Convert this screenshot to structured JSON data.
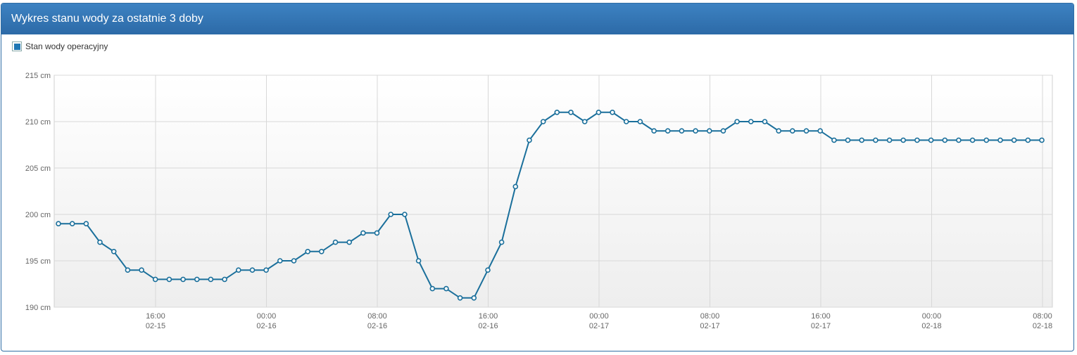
{
  "panel": {
    "title": "Wykres stanu wody za ostatnie 3 doby"
  },
  "legend": {
    "label": "Stan wody operacyjny",
    "color": "#1f77b4"
  },
  "chart_data": {
    "type": "line",
    "ylim": [
      190,
      215
    ],
    "y_ticks": [
      "215 cm",
      "210 cm",
      "205 cm",
      "200 cm",
      "195 cm",
      "190 cm"
    ],
    "x_ticks": [
      {
        "time": "16:00",
        "date": "02-15"
      },
      {
        "time": "00:00",
        "date": "02-16"
      },
      {
        "time": "08:00",
        "date": "02-16"
      },
      {
        "time": "16:00",
        "date": "02-16"
      },
      {
        "time": "00:00",
        "date": "02-17"
      },
      {
        "time": "08:00",
        "date": "02-17"
      },
      {
        "time": "16:00",
        "date": "02-17"
      },
      {
        "time": "00:00",
        "date": "02-18"
      },
      {
        "time": "08:00",
        "date": "02-18"
      }
    ],
    "grid": true,
    "series": [
      {
        "name": "Stan wody operacyjny",
        "color": "#1a6f9b",
        "values": [
          199,
          199,
          199,
          197,
          196,
          194,
          194,
          193,
          193,
          193,
          193,
          193,
          193,
          194,
          194,
          194,
          195,
          195,
          196,
          196,
          197,
          197,
          198,
          198,
          200,
          200,
          195,
          192,
          192,
          191,
          191,
          194,
          197,
          203,
          208,
          210,
          211,
          211,
          210,
          211,
          211,
          210,
          210,
          209,
          209,
          209,
          209,
          209,
          209,
          210,
          210,
          210,
          209,
          209,
          209,
          209,
          208,
          208,
          208,
          208,
          208,
          208,
          208,
          208,
          208,
          208,
          208,
          208,
          208,
          208,
          208,
          208
        ]
      }
    ]
  }
}
